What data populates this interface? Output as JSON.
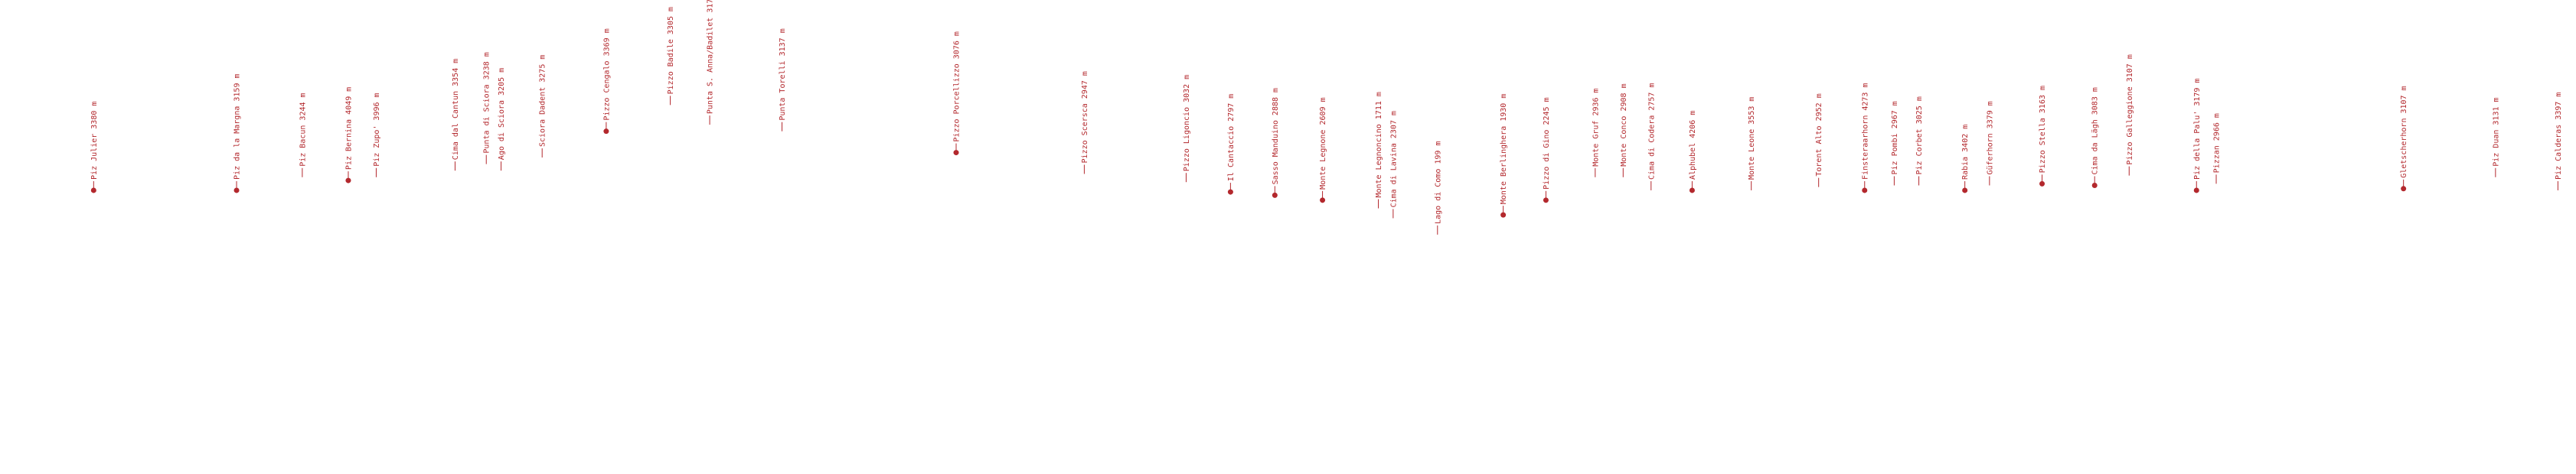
{
  "peaks": [
    "Piz Julier 3380 m",
    "Piz da la Margna 3159 m",
    "Piz Bacun 3244 m",
    "Piz Bernina 4049 m",
    "Piz Zupo' 3996 m",
    "Cima dal Cantun 3354 m",
    "Punta di Sciora 3238 m",
    "Ago di Sciora 3205 m",
    "Sciora Dadent 3275 m",
    "Pizzo Cengalo 3369 m",
    "Pizzo Badile 3305 m",
    "Punta S. Anna/Badilet 317",
    "Punta Torelli 3137 m",
    "Pizzo Porcellizzo 3076 m",
    "Pizzo Scersca 2947 m",
    "Pizzo Ligoncio 3032 m",
    "Il Cantaccio 2797 m",
    "Sasso Manduino 2888 m",
    "Monte Legnone 2609 m",
    "Monte Legnoncino 1711 m",
    "Cima di Lavina 2307 m",
    "Lago di Como 199 m",
    "Monte Berlinghera 1930 m",
    "Pizzo di Gino 2245 m",
    "Monte Gruf 2936 m",
    "Monte Conco 2908 m",
    "Cima di Codera 2757 m",
    "Alphubel 4206 m",
    "Monte Leone 3553 m",
    "Torent Alto 2952 m",
    "Finsteraarhorn 4273 m",
    "Piz Pombi 2967 m",
    "Piz Corbet 3025 m",
    "Rabia 3402 m",
    "Güferhorn 3379 m",
    "Pizzo Stella 3163 m",
    "Cima da Lägh 3083 m",
    "Pizzo Galleggione 3107 m",
    "Piz della Palu' 3179 m",
    "Pizzan 2966 m",
    "Gletscherhorn 3107 m",
    "Piz Duan 3131 m",
    "Piz Calderas 3397 m"
  ]
}
